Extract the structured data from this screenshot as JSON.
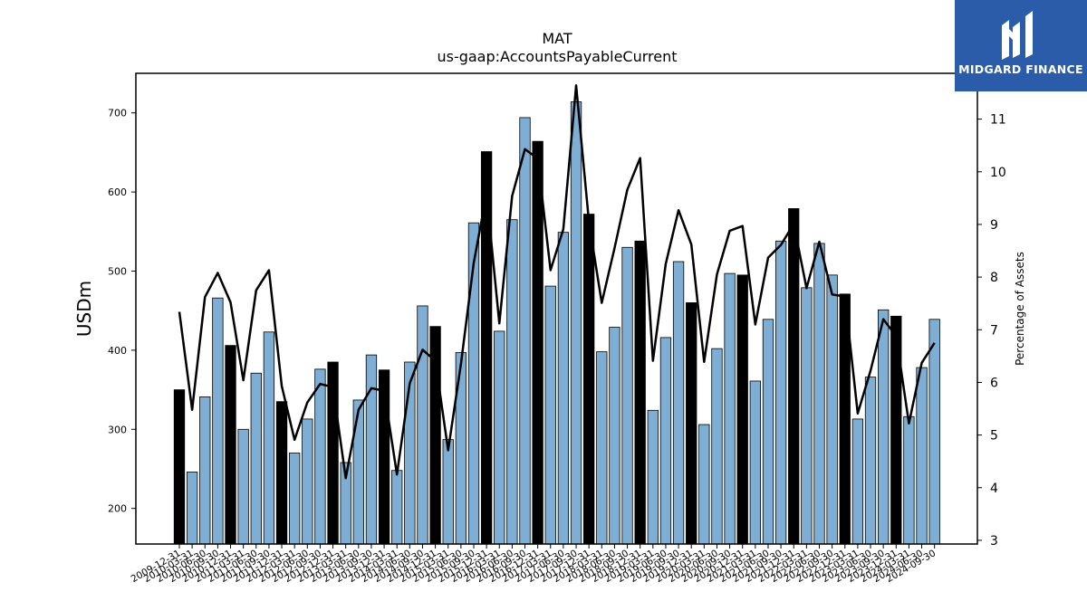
{
  "chart_data": {
    "type": "bar",
    "title": "MAT",
    "subtitle": "us-gaap:AccountsPayableCurrent",
    "ylabel": "USDm",
    "ylabel_right": "Percentage of Assets",
    "ylim": [
      155,
      750
    ],
    "ylim_right": [
      2.93,
      11.87
    ],
    "yticks": [
      200,
      300,
      400,
      500,
      600,
      700
    ],
    "yticks_right": [
      3,
      4,
      5,
      6,
      7,
      8,
      9,
      10,
      11
    ],
    "categories": [
      "2009-12-31",
      "2010-03-31",
      "2010-06-30",
      "2010-09-30",
      "2010-12-31",
      "2011-03-31",
      "2011-06-30",
      "2011-09-30",
      "2011-12-31",
      "2012-03-31",
      "2012-06-30",
      "2012-09-30",
      "2012-12-31",
      "2013-03-31",
      "2013-06-30",
      "2013-09-30",
      "2013-12-31",
      "2014-03-31",
      "2014-06-30",
      "2014-09-30",
      "2014-12-31",
      "2015-03-31",
      "2015-06-30",
      "2015-09-30",
      "2015-12-31",
      "2016-03-31",
      "2016-06-30",
      "2016-09-30",
      "2016-12-31",
      "2017-03-31",
      "2017-06-30",
      "2017-09-30",
      "2017-12-31",
      "2018-03-31",
      "2018-06-30",
      "2018-09-30",
      "2018-12-31",
      "2019-03-31",
      "2019-06-30",
      "2019-09-30",
      "2019-12-31",
      "2020-03-31",
      "2020-06-30",
      "2020-09-30",
      "2020-12-31",
      "2021-03-31",
      "2021-06-30",
      "2021-09-30",
      "2021-12-31",
      "2022-03-31",
      "2022-06-30",
      "2022-09-30",
      "2022-12-31",
      "2023-03-31",
      "2023-06-30",
      "2023-09-30",
      "2023-12-31",
      "2024-03-31",
      "2024-06-30",
      "2024-09-30"
    ],
    "series": [
      {
        "type": "bar",
        "values": [
          350,
          246,
          341,
          466,
          406,
          300,
          371,
          423,
          335,
          270,
          313,
          376,
          385,
          258,
          337,
          394,
          375,
          248,
          385,
          456,
          430,
          287,
          397,
          561,
          651,
          424,
          565,
          694,
          664,
          481,
          549,
          714,
          572,
          398,
          429,
          530,
          538,
          324,
          416,
          512,
          460,
          306,
          402,
          497,
          495,
          361,
          439,
          538,
          579,
          479,
          535,
          495,
          471,
          313,
          366,
          451,
          443,
          316,
          378,
          439
        ],
        "highlight": [
          0,
          4,
          8,
          12,
          16,
          20,
          24,
          28,
          32,
          36,
          40,
          44,
          48,
          52,
          56
        ]
      },
      {
        "type": "line",
        "axis": "right",
        "values": [
          7.34,
          5.48,
          7.62,
          8.08,
          7.52,
          6.04,
          7.75,
          8.13,
          5.93,
          4.91,
          5.62,
          5.97,
          5.91,
          4.18,
          5.48,
          5.89,
          5.84,
          4.25,
          5.98,
          6.62,
          6.41,
          4.71,
          6.35,
          8.27,
          9.58,
          7.12,
          9.54,
          10.43,
          10.25,
          8.13,
          8.91,
          11.64,
          9.05,
          7.51,
          8.55,
          9.66,
          10.26,
          6.41,
          8.25,
          9.27,
          8.62,
          6.39,
          8.05,
          8.88,
          8.97,
          7.1,
          8.37,
          8.61,
          9.01,
          7.79,
          8.67,
          7.67,
          7.63,
          5.41,
          6.22,
          7.2,
          6.88,
          5.22,
          6.37,
          6.75
        ]
      }
    ],
    "colors": {
      "bar": "#7eaed3",
      "bar_highlight": "#000000",
      "line": "#000000"
    }
  },
  "logo": {
    "text": "MIDGARD FINANCE",
    "bg": "#2a5caa"
  }
}
